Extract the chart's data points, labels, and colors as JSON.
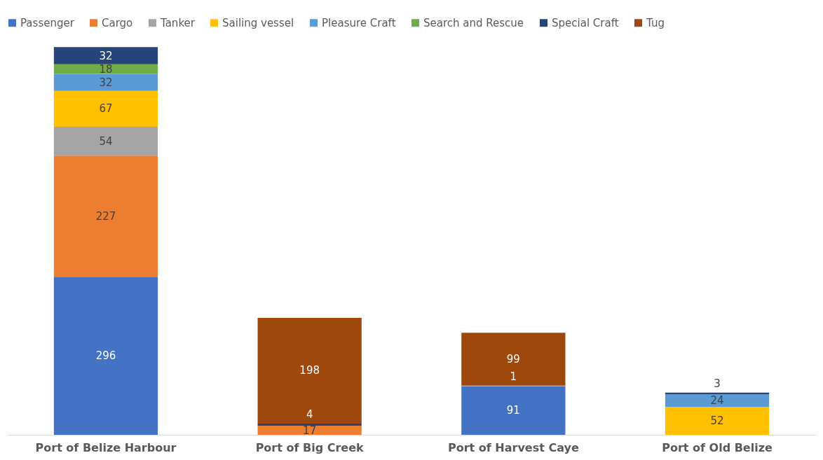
{
  "chart_data": {
    "type": "bar",
    "stacked": true,
    "data_labels": true,
    "legend": "top",
    "grid": false,
    "categories": [
      "Port of Belize Harbour",
      "Port of Big Creek",
      "Port of Harvest Caye",
      "Port of Old Belize"
    ],
    "series": [
      {
        "name": "Passenger",
        "color": "#4472c4",
        "values": [
          296,
          null,
          91,
          null
        ]
      },
      {
        "name": "Cargo",
        "color": "#ed7d31",
        "values": [
          227,
          17,
          null,
          null
        ]
      },
      {
        "name": "Tanker",
        "color": "#a5a5a5",
        "values": [
          54,
          null,
          1,
          null
        ]
      },
      {
        "name": "Sailing vessel",
        "color": "#ffc000",
        "values": [
          67,
          null,
          null,
          52
        ]
      },
      {
        "name": "Pleasure Craft",
        "color": "#5b9bd5",
        "values": [
          32,
          null,
          null,
          24
        ]
      },
      {
        "name": "Search and Rescue",
        "color": "#70ad47",
        "values": [
          18,
          null,
          null,
          null
        ]
      },
      {
        "name": "Special Craft",
        "color": "#264478",
        "values": [
          32,
          4,
          null,
          3
        ]
      },
      {
        "name": "Tug",
        "color": "#9e480e",
        "values": [
          null,
          198,
          99,
          null
        ]
      }
    ]
  }
}
